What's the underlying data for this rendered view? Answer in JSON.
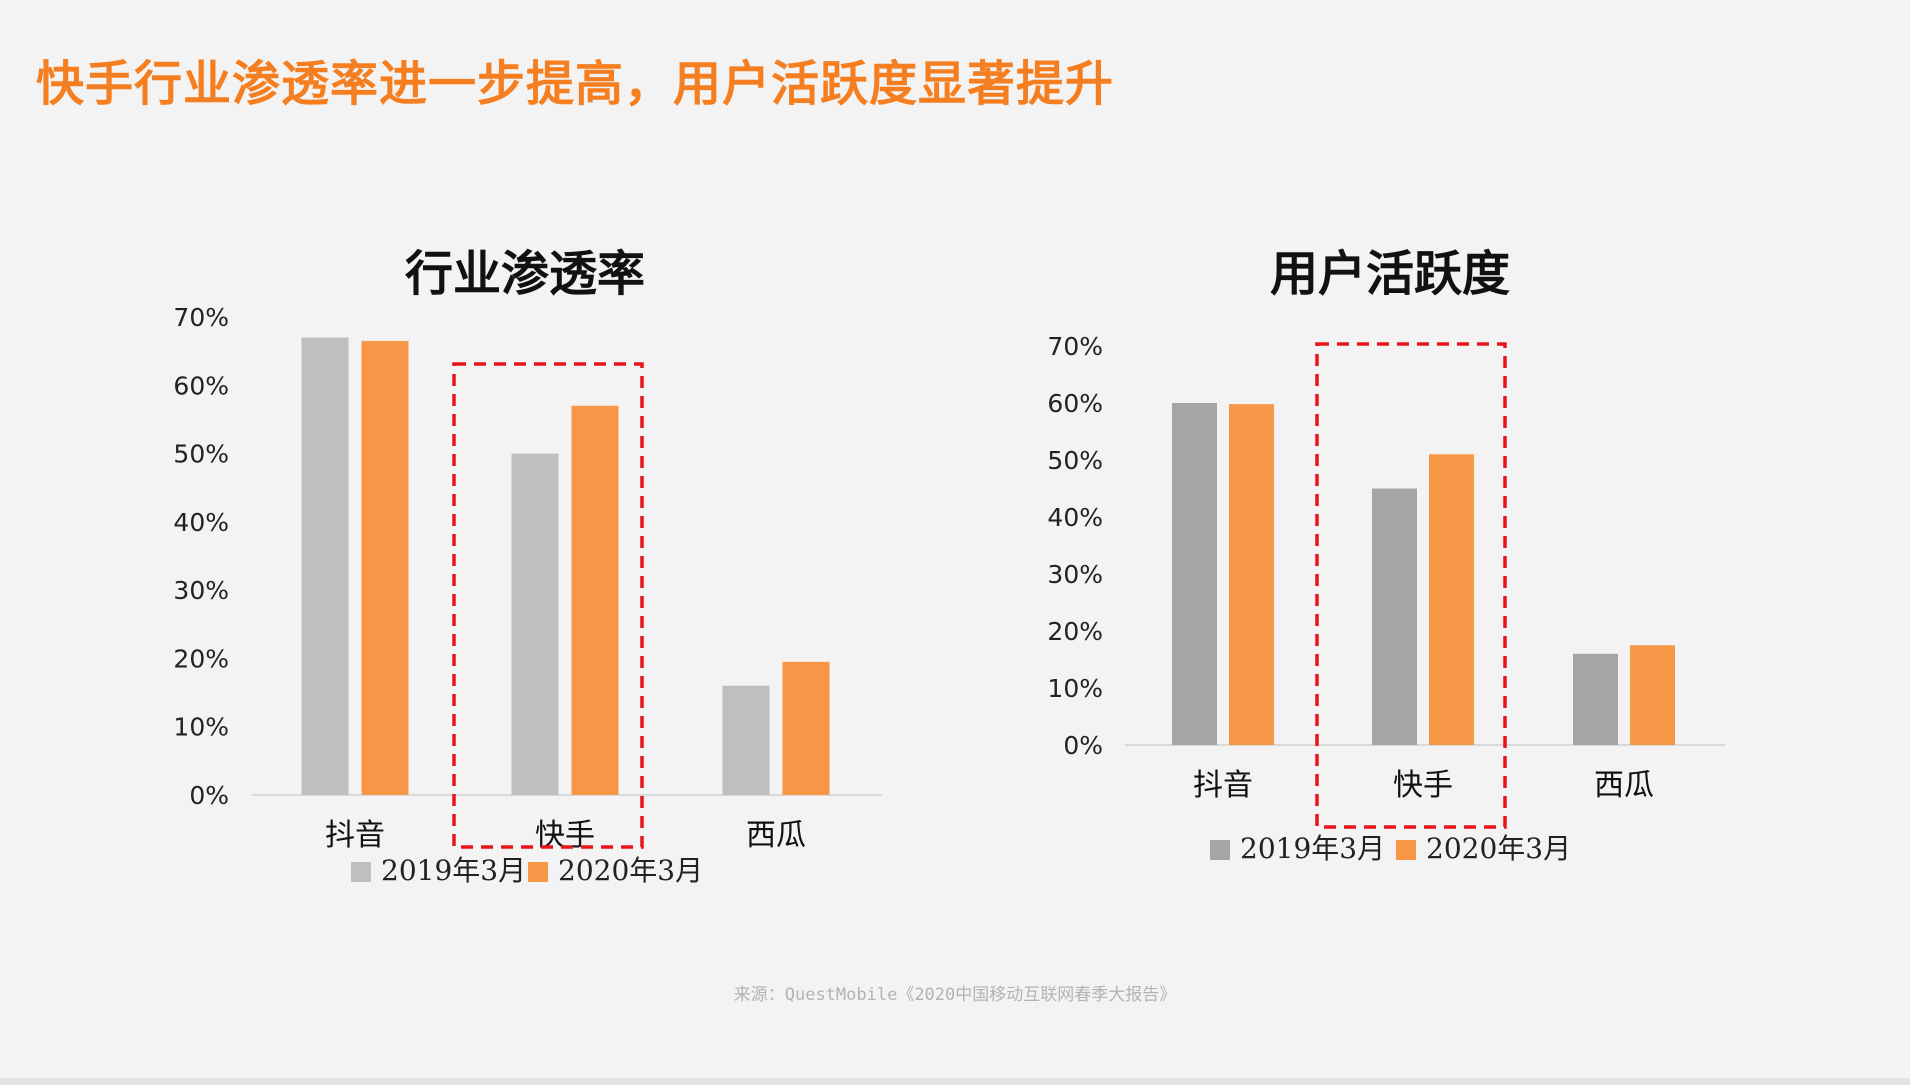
{
  "page": {
    "title": "快手行业渗透率进一步提高，用户活跃度显著提升",
    "source": "来源：QuestMobile《2020中国移动互联网春季大报告》"
  },
  "colors": {
    "accent": "#f57f20",
    "series_2020": "#f79646",
    "chart1_series_2019": "#bfbfbf",
    "chart2_series_2019": "#a5a5a5",
    "highlight_box": "#e8141a"
  },
  "chart_data": [
    {
      "type": "bar",
      "title": "行业渗透率",
      "categories": [
        "抖音",
        "快手",
        "西瓜"
      ],
      "series": [
        {
          "name": "2019年3月",
          "values": [
            67,
            50,
            16
          ]
        },
        {
          "name": "2020年3月",
          "values": [
            66.5,
            57,
            19.5
          ]
        }
      ],
      "yticks": [
        "0%",
        "10%",
        "20%",
        "30%",
        "40%",
        "50%",
        "60%",
        "70%"
      ],
      "ylim": [
        0,
        70
      ],
      "grid": false,
      "legend": "bottom",
      "highlight_category": "快手"
    },
    {
      "type": "bar",
      "title": "用户活跃度",
      "categories": [
        "抖音",
        "快手",
        "西瓜"
      ],
      "series": [
        {
          "name": "2019年3月",
          "values": [
            60,
            45,
            16
          ]
        },
        {
          "name": "2020年3月",
          "values": [
            59.8,
            51,
            17.5
          ]
        }
      ],
      "yticks": [
        "0%",
        "10%",
        "20%",
        "30%",
        "40%",
        "50%",
        "60%",
        "70%"
      ],
      "ylim": [
        0,
        70
      ],
      "grid": false,
      "legend": "bottom",
      "highlight_category": "快手"
    }
  ]
}
